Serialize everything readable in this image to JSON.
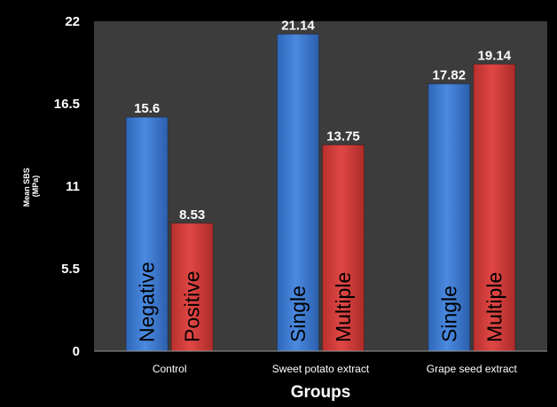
{
  "chart_data": {
    "type": "bar",
    "xlabel": "Groups",
    "ylabel_lines": [
      "Mean SBS",
      "(MPa)"
    ],
    "ylim": [
      0,
      22
    ],
    "yticks": [
      0,
      5.5,
      11,
      16.5,
      22
    ],
    "ytick_labels": [
      "0",
      "5.5",
      "11",
      "16.5",
      "22"
    ],
    "grid": false,
    "categories": [
      "Control",
      "Sweet potato extract",
      "Grape seed extract"
    ],
    "series": [
      {
        "color": "#3f7fd6",
        "values": [
          15.6,
          21.14,
          17.82
        ],
        "value_labels": [
          "15.6",
          "21.14",
          "17.82"
        ],
        "bar_labels": [
          "Negative",
          "Single",
          "Single"
        ]
      },
      {
        "color": "#d63a38",
        "values": [
          8.53,
          13.75,
          19.14
        ],
        "value_labels": [
          "8.53",
          "13.75",
          "19.14"
        ],
        "bar_labels": [
          "Positive",
          "Multiple",
          "Multiple"
        ]
      }
    ],
    "colors": {
      "background": "#000000",
      "plot_area": "#3c3c3c",
      "text": "#ffffff",
      "axis": "#9a9a9a"
    }
  }
}
